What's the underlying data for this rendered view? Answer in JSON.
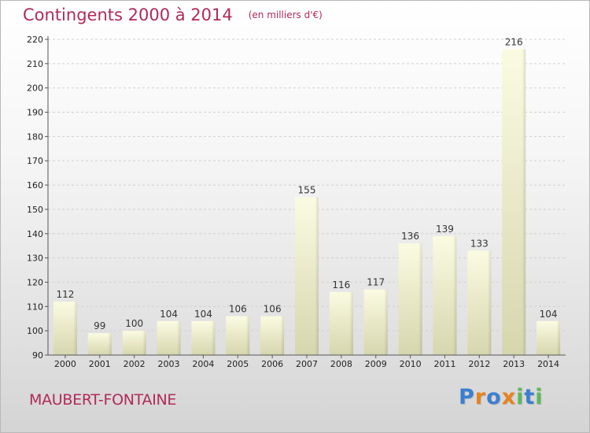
{
  "header": {
    "title": "Contingents 2000 à 2014",
    "subtitle": "(en milliers d'€)"
  },
  "footer": {
    "location": "MAUBERT-FONTAINE",
    "brand_letters": [
      "P",
      "r",
      "o",
      "x",
      "i",
      "t",
      "i"
    ],
    "brand_colors": [
      "#3b7fd1",
      "#e8821f",
      "#3b7fd1",
      "#e8821f",
      "#5cb85c",
      "#3b7fd1",
      "#5cb85c"
    ]
  },
  "chart_data": {
    "type": "bar",
    "categories": [
      "2000",
      "2001",
      "2002",
      "2003",
      "2004",
      "2005",
      "2006",
      "2007",
      "2008",
      "2009",
      "2010",
      "2011",
      "2012",
      "2013",
      "2014"
    ],
    "values": [
      112,
      99,
      100,
      104,
      104,
      106,
      106,
      155,
      116,
      117,
      136,
      139,
      133,
      216,
      104
    ],
    "title": "Contingents 2000 à 2014",
    "subtitle": "(en milliers d'€)",
    "xlabel": "",
    "ylabel": "",
    "ylim": [
      90,
      220
    ],
    "yticks": [
      90,
      100,
      110,
      120,
      130,
      140,
      150,
      160,
      170,
      180,
      190,
      200,
      210,
      220
    ],
    "grid": true,
    "bar_color": "#f3f3c8",
    "legend": "none"
  }
}
